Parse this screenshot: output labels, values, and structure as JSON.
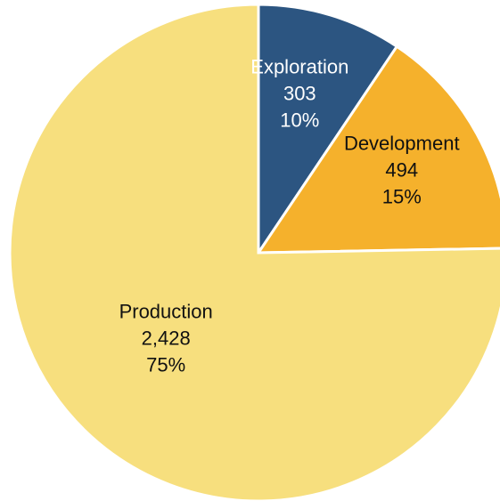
{
  "chart_data": {
    "type": "pie",
    "title": "",
    "slices": [
      {
        "name": "Exploration",
        "value": 303,
        "value_label": "303",
        "percent_label": "10%",
        "color": "#2c5581",
        "label_color": "#ffffff"
      },
      {
        "name": "Development",
        "value": 494,
        "value_label": "494",
        "percent_label": "15%",
        "color": "#f5b12c",
        "label_color": "#111111"
      },
      {
        "name": "Production",
        "value": 2428,
        "value_label": "2,428",
        "percent_label": "75%",
        "color": "#f7df7e",
        "label_color": "#111111"
      }
    ],
    "legend": "none",
    "start_angle": "12 o'clock, clockwise"
  }
}
